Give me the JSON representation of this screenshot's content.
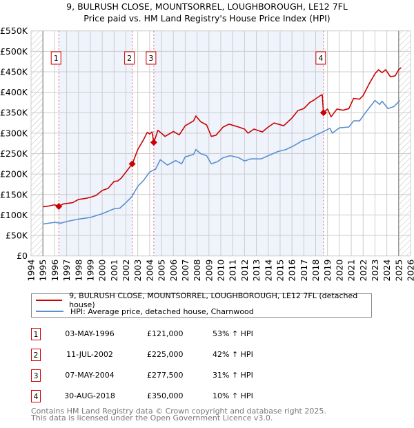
{
  "title": "9, BULRUSH CLOSE, MOUNTSORREL, LOUGHBOROUGH, LE12 7FL",
  "subtitle": "Price paid vs. HM Land Registry's House Price Index (HPI)",
  "colors": {
    "price": "#cc0000",
    "hpi": "#5b8fd0",
    "shade": "#eef3fc",
    "grid": "#cccccc"
  },
  "chart_data": {
    "type": "line",
    "title": "9, BULRUSH CLOSE, MOUNTSORREL, LOUGHBOROUGH, LE12 7FL",
    "xlim": [
      1994,
      2026
    ],
    "ylim": [
      0,
      550000
    ],
    "y_ticks": [
      {
        "v": 0,
        "label": "£0"
      },
      {
        "v": 50000,
        "label": "£50K"
      },
      {
        "v": 100000,
        "label": "£100K"
      },
      {
        "v": 150000,
        "label": "£150K"
      },
      {
        "v": 200000,
        "label": "£200K"
      },
      {
        "v": 250000,
        "label": "£250K"
      },
      {
        "v": 300000,
        "label": "£300K"
      },
      {
        "v": 350000,
        "label": "£350K"
      },
      {
        "v": 400000,
        "label": "£400K"
      },
      {
        "v": 450000,
        "label": "£450K"
      },
      {
        "v": 500000,
        "label": "£500K"
      },
      {
        "v": 550000,
        "label": "£550K"
      }
    ],
    "x_ticks": [
      "1994",
      "1995",
      "1996",
      "1997",
      "1998",
      "1999",
      "2000",
      "2001",
      "2002",
      "2003",
      "2004",
      "2005",
      "2006",
      "2007",
      "2008",
      "2009",
      "2010",
      "2011",
      "2012",
      "2013",
      "2014",
      "2015",
      "2016",
      "2017",
      "2018",
      "2019",
      "2020",
      "2021",
      "2022",
      "2023",
      "2024",
      "2025",
      "2026"
    ],
    "grid": true,
    "data_range": [
      1995,
      2025
    ],
    "series": [
      {
        "name": "9, BULRUSH CLOSE, MOUNTSORREL, LOUGHBOROUGH, LE12 7FL (detached house)",
        "key": "price",
        "x": [
          1995,
          1995.5,
          1996,
          1996.34,
          1996.7,
          1997,
          1997.5,
          1998,
          1998.5,
          1999,
          1999.5,
          2000,
          2000.5,
          2001,
          2001.3,
          2001.6,
          2002,
          2002.54,
          2003,
          2003.5,
          2003.8,
          2004.0,
          2004.2,
          2004.35,
          2004.7,
          2005.3,
          2006,
          2006.5,
          2007,
          2007.7,
          2007.9,
          2008.3,
          2008.8,
          2009.2,
          2009.6,
          2010.2,
          2010.7,
          2011.5,
          2012,
          2012.3,
          2012.8,
          2013.5,
          2014,
          2014.5,
          2015.3,
          2016,
          2016.5,
          2017,
          2017.5,
          2017.8,
          2018.4,
          2018.55,
          2018.66,
          2019,
          2019.3,
          2019.8,
          2020.3,
          2020.8,
          2021.2,
          2021.7,
          2022,
          2022.5,
          2023,
          2023.3,
          2023.6,
          2023.9,
          2024.3,
          2024.7,
          2025,
          2025.2
        ],
        "values": [
          120000,
          122000,
          125000,
          121000,
          127000,
          128000,
          130000,
          138000,
          140000,
          143000,
          148000,
          160000,
          165000,
          182000,
          183000,
          190000,
          205000,
          225000,
          260000,
          285000,
          302000,
          298000,
          303000,
          277500,
          307000,
          292000,
          304000,
          296000,
          318000,
          330000,
          342000,
          328000,
          320000,
          292000,
          295000,
          315000,
          322000,
          315000,
          310000,
          300000,
          310000,
          303000,
          315000,
          325000,
          318000,
          337000,
          355000,
          360000,
          375000,
          380000,
          392000,
          394000,
          350000,
          359000,
          340000,
          359000,
          356000,
          360000,
          385000,
          383000,
          392000,
          420000,
          445000,
          455000,
          448000,
          455000,
          438000,
          440000,
          455000,
          460000
        ]
      },
      {
        "name": "HPI: Average price, detached house, Charnwood",
        "key": "hpi",
        "x": [
          1995,
          1996,
          1996.5,
          1997,
          1998,
          1999,
          2000,
          2001,
          2001.5,
          2002,
          2002.5,
          2003,
          2003.5,
          2004,
          2004.5,
          2004.9,
          2005.5,
          2006.2,
          2006.7,
          2007,
          2007.7,
          2007.9,
          2008.3,
          2008.8,
          2009.2,
          2009.7,
          2010.2,
          2010.8,
          2011.5,
          2012,
          2012.5,
          2013.4,
          2014,
          2014.8,
          2015.5,
          2016.2,
          2016.9,
          2017.5,
          2018,
          2018.6,
          2019.2,
          2019.4,
          2020,
          2020.8,
          2021.2,
          2021.7,
          2022.2,
          2023,
          2023.4,
          2023.6,
          2024.1,
          2024.6,
          2025.1
        ],
        "values": [
          78000,
          82000,
          80000,
          84000,
          90000,
          94000,
          103000,
          115000,
          117000,
          130000,
          145000,
          170000,
          185000,
          205000,
          212000,
          235000,
          222000,
          233000,
          225000,
          242000,
          248000,
          260000,
          250000,
          245000,
          225000,
          230000,
          240000,
          245000,
          240000,
          232000,
          237000,
          237000,
          245000,
          255000,
          260000,
          270000,
          282000,
          287000,
          295000,
          303000,
          312000,
          300000,
          313000,
          315000,
          330000,
          330000,
          350000,
          380000,
          370000,
          378000,
          360000,
          365000,
          380000
        ]
      }
    ],
    "sales": [
      {
        "n": "1",
        "x": 1996.34,
        "date": "03-MAY-1996",
        "price": 121000,
        "price_label": "£121,000",
        "hpi": "53% ↑ HPI"
      },
      {
        "n": "2",
        "x": 2002.53,
        "date": "11-JUL-2002",
        "price": 225000,
        "price_label": "£225,000",
        "hpi": "42% ↑ HPI"
      },
      {
        "n": "3",
        "x": 2004.35,
        "date": "07-MAY-2004",
        "price": 277500,
        "price_label": "£277,500",
        "hpi": "31% ↑ HPI"
      },
      {
        "n": "4",
        "x": 2018.66,
        "date": "30-AUG-2018",
        "price": 350000,
        "price_label": "£350,000",
        "hpi": "10% ↑ HPI"
      }
    ]
  },
  "legend": {
    "price_label": "9, BULRUSH CLOSE, MOUNTSORREL, LOUGHBOROUGH, LE12 7FL (detached house)",
    "hpi_label": "HPI: Average price, detached house, Charnwood"
  },
  "footer": {
    "line1": "Contains HM Land Registry data © Crown copyright and database right 2025.",
    "line2": "This data is licensed under the Open Government Licence v3.0."
  }
}
